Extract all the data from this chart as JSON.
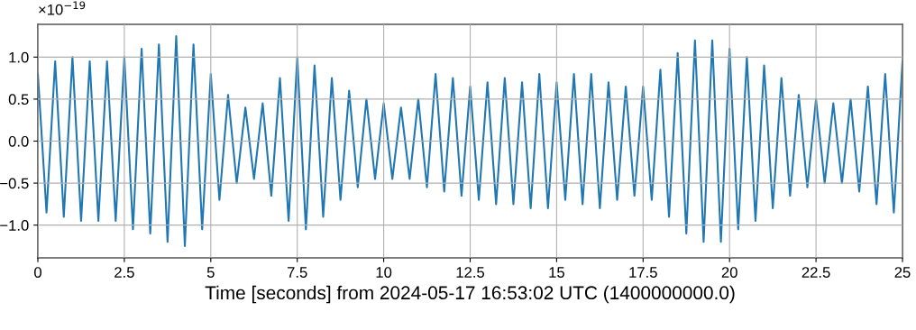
{
  "chart_data": {
    "type": "line",
    "xlabel": "Time [seconds] from 2024-05-17 16:53:02 UTC (1400000000.0)",
    "annotations": [
      "×10$^{−19}$"
    ],
    "x": [
      0,
      0.25,
      0.5,
      0.75,
      1,
      1.25,
      1.5,
      1.75,
      2,
      2.25,
      2.5,
      2.75,
      3,
      3.25,
      3.5,
      3.75,
      4,
      4.25,
      4.5,
      4.75,
      5,
      5.25,
      5.5,
      5.75,
      6,
      6.25,
      6.5,
      6.75,
      7,
      7.25,
      7.5,
      7.75,
      8,
      8.25,
      8.5,
      8.75,
      9,
      9.25,
      9.5,
      9.75,
      10,
      10.25,
      10.5,
      10.75,
      11,
      11.25,
      11.5,
      11.75,
      12,
      12.25,
      12.5,
      12.75,
      13,
      13.25,
      13.5,
      13.75,
      14,
      14.25,
      14.5,
      14.75,
      15,
      15.25,
      15.5,
      15.75,
      16,
      16.25,
      16.5,
      16.75,
      17,
      17.25,
      17.5,
      17.75,
      18,
      18.25,
      18.5,
      18.75,
      19,
      19.25,
      19.5,
      19.75,
      20,
      20.25,
      20.5,
      20.75,
      21,
      21.25,
      21.5,
      21.75,
      22,
      22.25,
      22.5,
      22.75,
      23,
      23.25,
      23.5,
      23.75,
      24,
      24.25,
      24.5,
      24.75,
      25
    ],
    "series": [
      {
        "color": "#1f77b4",
        "values": [
          0.8,
          -0.85,
          0.95,
          -0.9,
          1.0,
          -0.95,
          0.95,
          -0.95,
          0.95,
          -0.95,
          1.0,
          -1.05,
          1.1,
          -1.1,
          1.15,
          -1.2,
          1.25,
          -1.25,
          1.15,
          -1.05,
          0.8,
          -0.7,
          0.55,
          -0.5,
          0.4,
          -0.45,
          0.45,
          -0.65,
          0.75,
          -0.95,
          1.0,
          -1.05,
          0.9,
          -0.9,
          0.75,
          -0.7,
          0.6,
          -0.55,
          0.5,
          -0.45,
          0.45,
          -0.45,
          0.4,
          -0.45,
          0.5,
          -0.55,
          0.8,
          -0.6,
          0.75,
          -0.65,
          0.65,
          -0.7,
          0.7,
          -0.75,
          0.75,
          -0.75,
          0.7,
          -0.8,
          0.8,
          -0.8,
          0.7,
          -0.7,
          0.8,
          -0.75,
          0.8,
          -0.8,
          0.7,
          -0.7,
          0.65,
          -0.65,
          0.65,
          -0.7,
          0.85,
          -0.9,
          1.05,
          -1.1,
          1.2,
          -1.2,
          1.2,
          -1.2,
          1.1,
          -1.05,
          1.0,
          -0.95,
          0.9,
          -0.8,
          0.75,
          -0.65,
          0.55,
          -0.55,
          0.5,
          -0.5,
          0.45,
          -0.5,
          0.5,
          -0.6,
          0.65,
          -0.75,
          0.8,
          -0.85,
          0.95
        ]
      }
    ],
    "xlim": [
      0,
      25
    ],
    "xticks": [
      0,
      2.5,
      5,
      7.5,
      10,
      12.5,
      15,
      17.5,
      20,
      22.5,
      25
    ],
    "ylim": [
      -1.39,
      1.39
    ],
    "yticks": [
      {
        "value": -1.0,
        "label": "−1.0"
      },
      {
        "value": -0.5,
        "label": "−0.5"
      },
      {
        "value": 0.0,
        "label": "0.0"
      },
      {
        "value": 0.5,
        "label": "0.5"
      },
      {
        "value": 1.0,
        "label": "1.0"
      }
    ],
    "grid": true,
    "legend": false,
    "marker": "none",
    "line_style": "solid"
  }
}
